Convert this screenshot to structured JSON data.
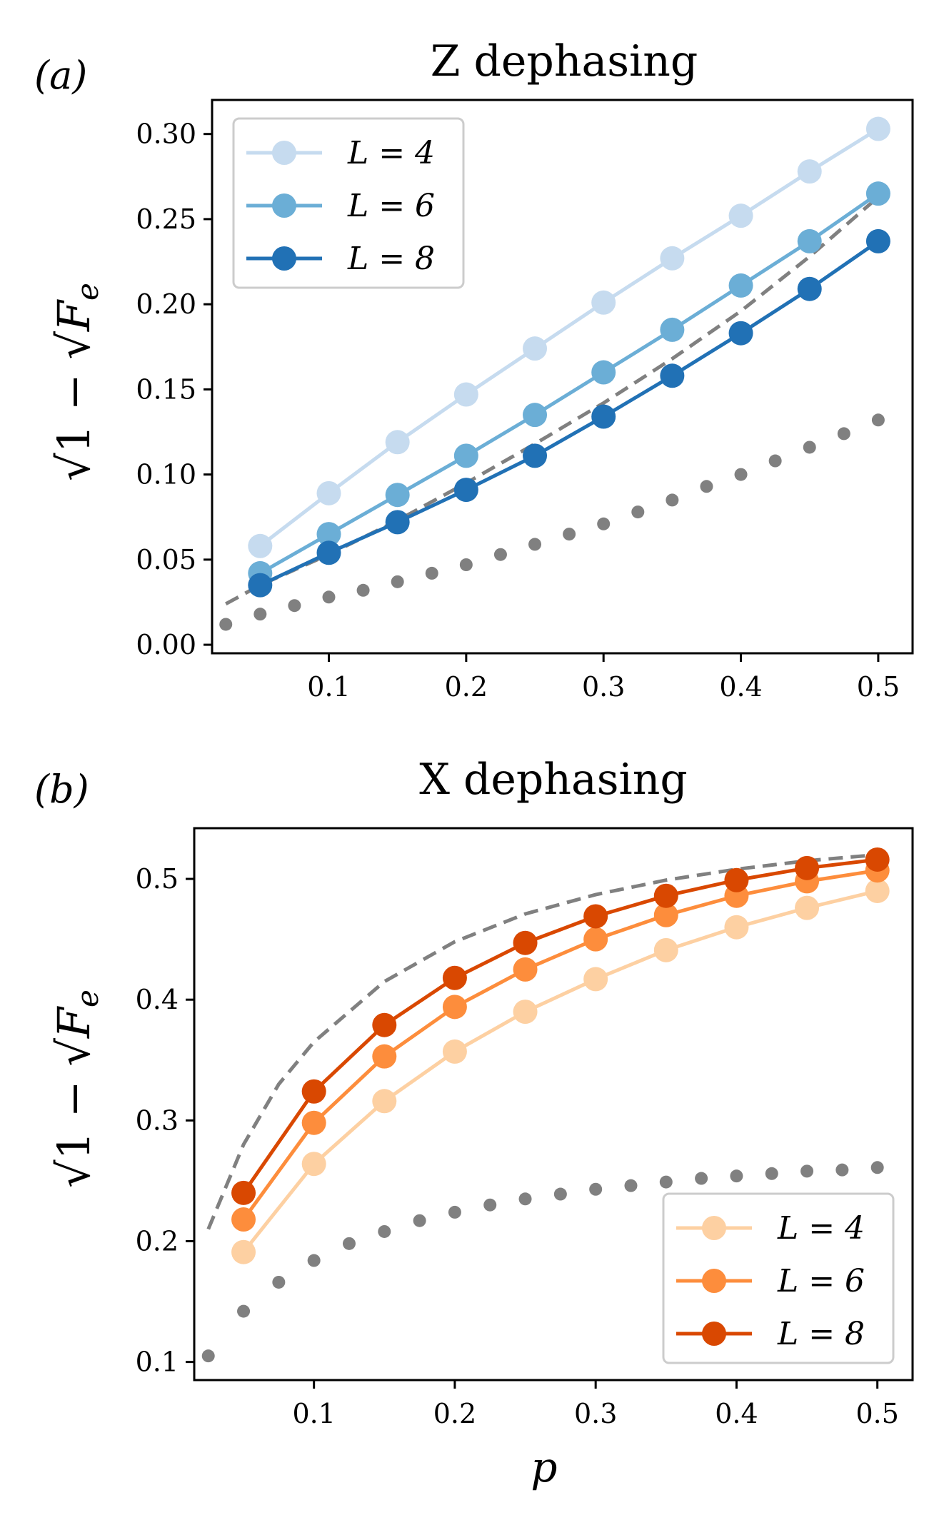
{
  "chart_data": [
    {
      "type": "line",
      "panel_label": "(a)",
      "title": "Z dephasing",
      "xlabel": "",
      "ylabel": "√(1 − √F_e)",
      "xlim": [
        0.015,
        0.525
      ],
      "ylim": [
        -0.005,
        0.32
      ],
      "xticks": [
        0.1,
        0.2,
        0.3,
        0.4,
        0.5
      ],
      "xtick_labels": [
        "0.1",
        "0.2",
        "0.3",
        "0.4",
        "0.5"
      ],
      "yticks": [
        0.0,
        0.05,
        0.1,
        0.15,
        0.2,
        0.25,
        0.3
      ],
      "ytick_labels": [
        "0.00",
        "0.05",
        "0.10",
        "0.15",
        "0.20",
        "0.25",
        "0.30"
      ],
      "legend_position": "top-left",
      "x": [
        0.05,
        0.1,
        0.15,
        0.2,
        0.25,
        0.3,
        0.35,
        0.4,
        0.45,
        0.5
      ],
      "series": [
        {
          "name": "L = 4",
          "color": "#c6dbef",
          "values": [
            0.058,
            0.089,
            0.119,
            0.147,
            0.174,
            0.201,
            0.227,
            0.252,
            0.278,
            0.303
          ]
        },
        {
          "name": "L = 6",
          "color": "#6baed6",
          "values": [
            0.042,
            0.065,
            0.088,
            0.111,
            0.135,
            0.16,
            0.185,
            0.211,
            0.237,
            0.265
          ]
        },
        {
          "name": "L = 8",
          "color": "#2171b5",
          "values": [
            0.035,
            0.054,
            0.072,
            0.091,
            0.111,
            0.134,
            0.158,
            0.183,
            0.209,
            0.237
          ]
        }
      ],
      "reference_dashed": {
        "color": "#808080",
        "x": [
          0.025,
          0.05,
          0.1,
          0.15,
          0.2,
          0.25,
          0.3,
          0.35,
          0.4,
          0.45,
          0.5
        ],
        "values": [
          0.024,
          0.035,
          0.053,
          0.073,
          0.095,
          0.118,
          0.142,
          0.168,
          0.196,
          0.228,
          0.263
        ]
      },
      "reference_dotted": {
        "color": "#808080",
        "x": [
          0.025,
          0.05,
          0.075,
          0.1,
          0.125,
          0.15,
          0.175,
          0.2,
          0.225,
          0.25,
          0.275,
          0.3,
          0.325,
          0.35,
          0.375,
          0.4,
          0.425,
          0.45,
          0.475,
          0.5
        ],
        "values": [
          0.012,
          0.018,
          0.023,
          0.028,
          0.032,
          0.037,
          0.042,
          0.047,
          0.053,
          0.059,
          0.065,
          0.071,
          0.078,
          0.085,
          0.093,
          0.1,
          0.108,
          0.116,
          0.124,
          0.132
        ]
      }
    },
    {
      "type": "line",
      "panel_label": "(b)",
      "title": "X dephasing",
      "xlabel": "p",
      "ylabel": "√(1 − √F_e)",
      "xlim": [
        0.015,
        0.525
      ],
      "ylim": [
        0.085,
        0.542
      ],
      "xticks": [
        0.1,
        0.2,
        0.3,
        0.4,
        0.5
      ],
      "xtick_labels": [
        "0.1",
        "0.2",
        "0.3",
        "0.4",
        "0.5"
      ],
      "yticks": [
        0.1,
        0.2,
        0.3,
        0.4,
        0.5
      ],
      "ytick_labels": [
        "0.1",
        "0.2",
        "0.3",
        "0.4",
        "0.5"
      ],
      "legend_position": "bottom-right",
      "x": [
        0.05,
        0.1,
        0.15,
        0.2,
        0.25,
        0.3,
        0.35,
        0.4,
        0.45,
        0.5
      ],
      "series": [
        {
          "name": "L = 4",
          "color": "#fdd0a2",
          "values": [
            0.191,
            0.264,
            0.316,
            0.357,
            0.39,
            0.417,
            0.441,
            0.46,
            0.476,
            0.49
          ]
        },
        {
          "name": "L = 6",
          "color": "#fd8d3c",
          "values": [
            0.218,
            0.298,
            0.353,
            0.394,
            0.425,
            0.45,
            0.47,
            0.486,
            0.498,
            0.507
          ]
        },
        {
          "name": "L = 8",
          "color": "#d94801",
          "values": [
            0.24,
            0.324,
            0.379,
            0.418,
            0.447,
            0.469,
            0.486,
            0.499,
            0.509,
            0.516
          ]
        }
      ],
      "reference_dashed": {
        "color": "#808080",
        "x": [
          0.025,
          0.05,
          0.075,
          0.1,
          0.15,
          0.2,
          0.25,
          0.3,
          0.35,
          0.4,
          0.45,
          0.5
        ],
        "values": [
          0.21,
          0.28,
          0.33,
          0.365,
          0.415,
          0.448,
          0.471,
          0.487,
          0.499,
          0.508,
          0.515,
          0.52
        ]
      },
      "reference_dotted": {
        "color": "#808080",
        "x": [
          0.025,
          0.05,
          0.075,
          0.1,
          0.125,
          0.15,
          0.175,
          0.2,
          0.225,
          0.25,
          0.275,
          0.3,
          0.325,
          0.35,
          0.375,
          0.4,
          0.425,
          0.45,
          0.475,
          0.5
        ],
        "values": [
          0.105,
          0.142,
          0.166,
          0.184,
          0.198,
          0.208,
          0.217,
          0.224,
          0.23,
          0.235,
          0.239,
          0.243,
          0.246,
          0.249,
          0.252,
          0.254,
          0.256,
          0.258,
          0.259,
          0.261
        ]
      }
    }
  ]
}
